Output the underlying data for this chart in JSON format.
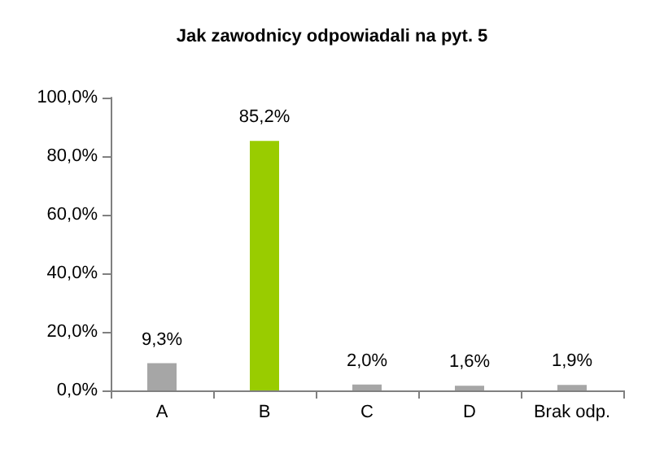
{
  "chart_data": {
    "type": "bar",
    "title": "Jak zawodnicy odpowiadali na pyt. 5",
    "categories": [
      "A",
      "B",
      "C",
      "D",
      "Brak odp."
    ],
    "values": [
      9.3,
      85.2,
      2.0,
      1.6,
      1.9
    ],
    "colors": [
      "#a6a6a6",
      "#99cc00",
      "#a6a6a6",
      "#a6a6a6",
      "#a6a6a6"
    ],
    "value_labels": [
      "9,3%",
      "85,2%",
      "2,0%",
      "1,6%",
      "1,9%"
    ],
    "ylim": [
      0,
      100
    ],
    "yticks": [
      {
        "value": 0,
        "label": "0,0%"
      },
      {
        "value": 20,
        "label": "20,0%"
      },
      {
        "value": 40,
        "label": "40,0%"
      },
      {
        "value": 60,
        "label": "60,0%"
      },
      {
        "value": 80,
        "label": "80,0%"
      },
      {
        "value": 100,
        "label": "100,0%"
      }
    ],
    "grid": false
  }
}
